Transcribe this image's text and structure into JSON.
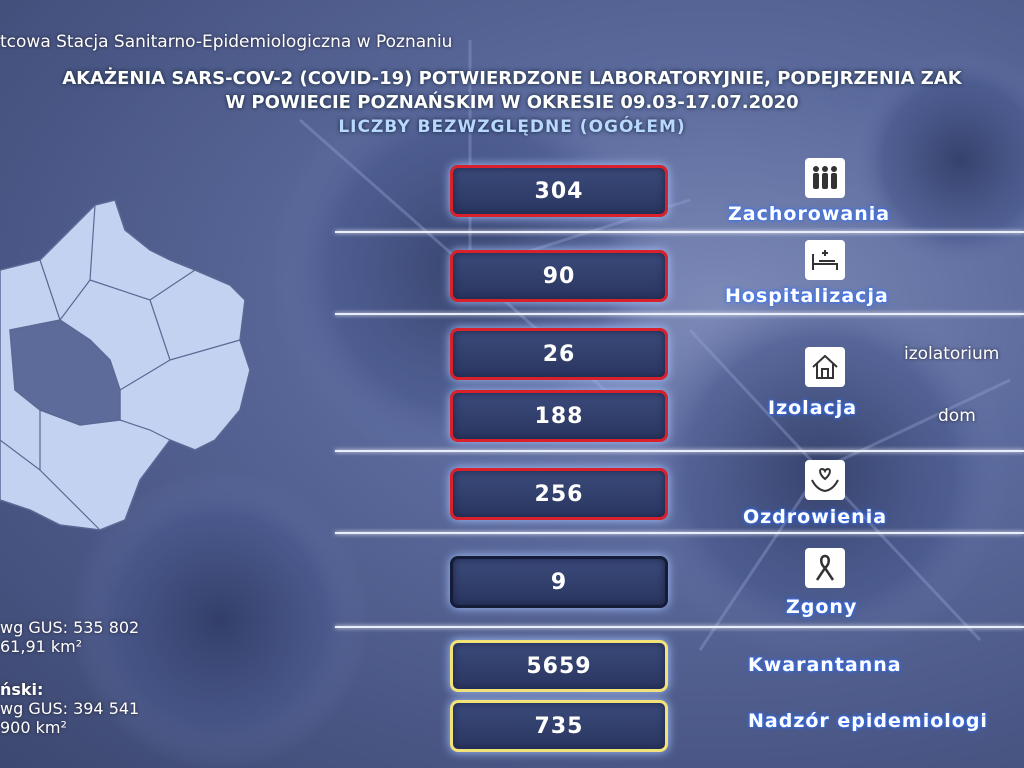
{
  "header": {
    "institution": "tcowa Stacja Sanitarno-Epidemiologiczna w Poznaniu",
    "title_line1": "AKAŻENIA SARS-COV-2 (COVID-19) POTWIERDZONE LABORATORYJNIE, PODEJRZENIA ZAK",
    "title_line2": "W POWIECIE POZNAŃSKIM W OKRESIE 09.03-17.07.2020",
    "title_line3": "LICZBY BEZWZGLĘDNE (OGÓŁEM)"
  },
  "rows": {
    "zachorowania": {
      "value": "304",
      "label": "Zachorowania",
      "icon": "people-icon"
    },
    "hospitalizacja": {
      "value": "90",
      "label": "Hospitalizacja",
      "icon": "hospital-bed-icon"
    },
    "izolacja": {
      "value_izolatorium": "26",
      "value_dom": "188",
      "label": "Izolacja",
      "sub1": "izolatorium",
      "sub2": "dom",
      "icon": "house-icon"
    },
    "ozdrowienia": {
      "value": "256",
      "label": "Ozdrowienia",
      "icon": "heart-hands-icon"
    },
    "zgony": {
      "value": "9",
      "label": "Zgony",
      "icon": "ribbon-icon"
    },
    "kwarantanna": {
      "value": "5659",
      "label": "Kwarantanna"
    },
    "nadzor": {
      "value": "735",
      "label": "Nadzór epidemiologi"
    }
  },
  "stats": {
    "line1": "wg GUS: 535 802",
    "line2": "61,91 km²",
    "line3": "ński:",
    "line4": "wg GUS: 394 541",
    "line5": "900 km²"
  },
  "colors": {
    "red_border": "#d8212b",
    "dark_border": "#151c38",
    "yellow_border": "#f2e27a",
    "map_fill": "#c4d2f2"
  }
}
